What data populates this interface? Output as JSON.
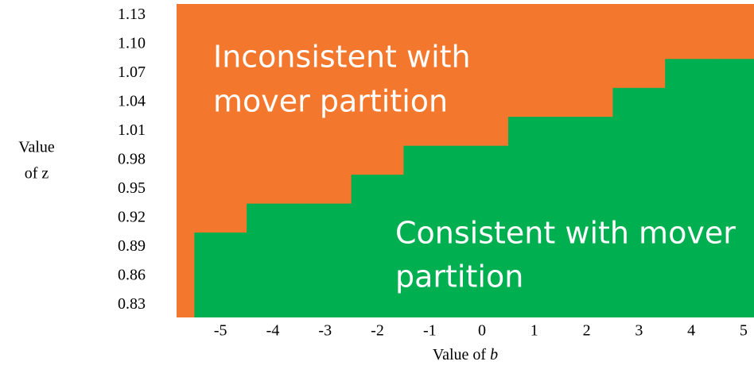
{
  "chart_data": {
    "type": "region",
    "x": [
      -5,
      -4,
      -3,
      -2,
      -1,
      0,
      1,
      2,
      3,
      4,
      5
    ],
    "values": [
      0.905,
      0.935,
      0.935,
      0.965,
      0.995,
      0.995,
      1.025,
      1.025,
      1.055,
      1.085,
      1.085
    ],
    "xlim": [
      -5.84,
      5.2
    ],
    "ylim": [
      0.817,
      1.142
    ],
    "xticks": [
      -5,
      -4,
      -3,
      -2,
      -1,
      0,
      1,
      2,
      3,
      4,
      5
    ],
    "yticks": [
      1.13,
      {
        "value": 1.1,
        "label": "1.10"
      },
      1.07,
      1.04,
      1.01,
      0.98,
      0.95,
      0.92,
      0.89,
      0.86,
      0.83
    ],
    "upper_color": "#f4772e",
    "lower_color": "#00b050",
    "upper_label": [
      "Inconsistent with",
      "mover partition"
    ],
    "lower_label": [
      "Consistent with mover",
      "partition"
    ],
    "ylabel": [
      "Value",
      "of z"
    ],
    "xlabel": {
      "text": "Value of",
      "var": "b"
    }
  }
}
